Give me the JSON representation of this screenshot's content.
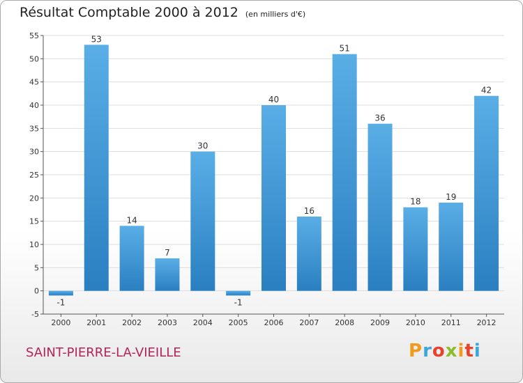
{
  "title": "Résultat Comptable 2000 à 2012",
  "subtitle": "(en milliers d'€)",
  "commune": "SAINT-PIERRE-LA-VIEILLE",
  "brand": {
    "letters": [
      "P",
      "r",
      "o",
      "x",
      "i",
      "t",
      "i"
    ],
    "colors": [
      "#f29a1b",
      "#3aa6dc",
      "#e8422e",
      "#8bbd2c",
      "#f29a1b",
      "#e8422e",
      "#3aa6dc"
    ]
  },
  "colors": {
    "bar_light": "#5aaee6",
    "bar_dark": "#2a7fc1",
    "grid": "#dddddd",
    "axis": "#555555",
    "text": "#333333"
  },
  "chart_data": {
    "type": "bar",
    "categories": [
      "2000",
      "2001",
      "2002",
      "2003",
      "2004",
      "2005",
      "2006",
      "2007",
      "2008",
      "2009",
      "2010",
      "2011",
      "2012"
    ],
    "values": [
      -1,
      53,
      14,
      7,
      30,
      -1,
      40,
      16,
      51,
      36,
      18,
      19,
      42
    ],
    "data_labels": [
      "-1",
      "53",
      "14",
      "7",
      "30",
      "-1",
      "40",
      "16",
      "51",
      "36",
      "18",
      "19",
      "42"
    ],
    "yticks": [
      -5,
      0,
      5,
      10,
      15,
      20,
      25,
      30,
      35,
      40,
      45,
      50,
      55
    ],
    "ylim": [
      -5,
      55
    ],
    "grid": true
  }
}
